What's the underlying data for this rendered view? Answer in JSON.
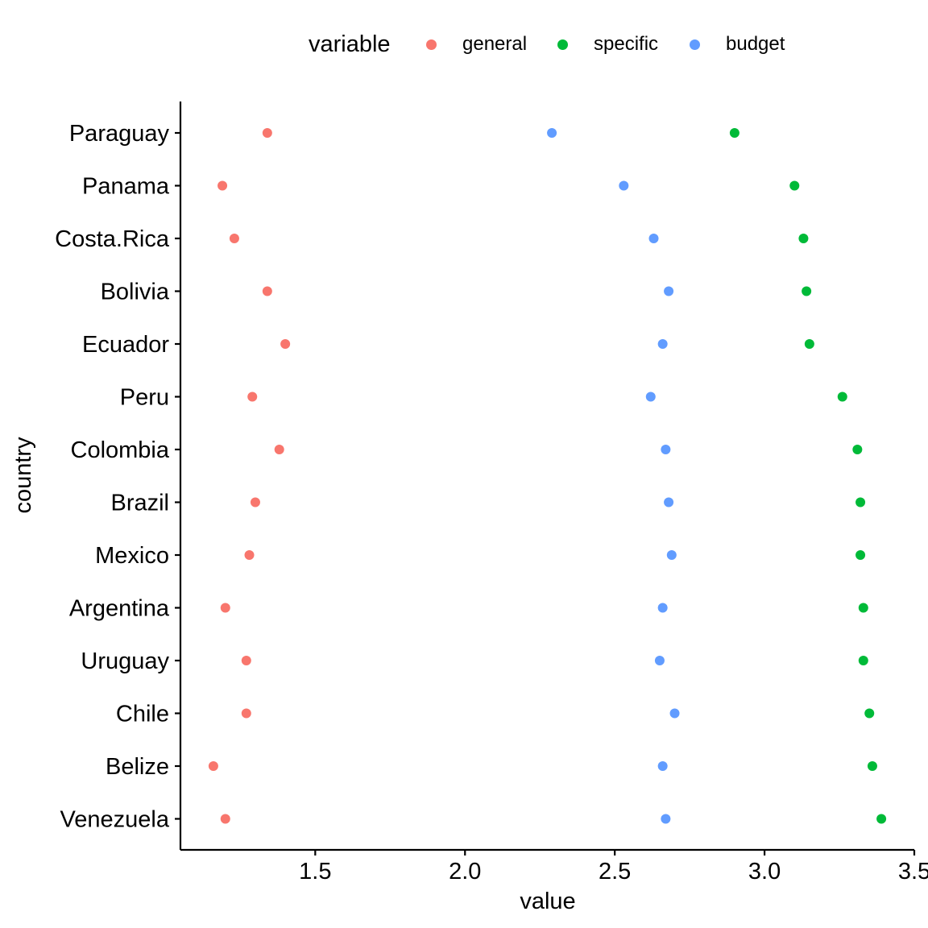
{
  "chart_data": {
    "type": "scatter",
    "xlabel": "value",
    "ylabel": "country",
    "xlim": [
      1.05,
      3.5
    ],
    "x_ticks": [
      1.5,
      2.0,
      2.5,
      3.0,
      3.5
    ],
    "x_tick_labels": [
      "1.5",
      "2.0",
      "2.5",
      "3.0",
      "3.5"
    ],
    "grid": false,
    "legend": {
      "title": "variable",
      "placement": "top",
      "entries": [
        "general",
        "specific",
        "budget"
      ]
    },
    "categories": [
      "Paraguay",
      "Panama",
      "Costa.Rica",
      "Bolivia",
      "Ecuador",
      "Peru",
      "Colombia",
      "Brazil",
      "Mexico",
      "Argentina",
      "Uruguay",
      "Chile",
      "Belize",
      "Venezuela"
    ],
    "series": [
      {
        "name": "general",
        "color": "#F8766D",
        "values": [
          1.34,
          1.19,
          1.23,
          1.34,
          1.4,
          1.29,
          1.38,
          1.3,
          1.28,
          1.2,
          1.27,
          1.27,
          1.16,
          1.2
        ]
      },
      {
        "name": "specific",
        "color": "#00BA38",
        "values": [
          2.9,
          3.1,
          3.13,
          3.14,
          3.15,
          3.26,
          3.31,
          3.32,
          3.32,
          3.33,
          3.33,
          3.35,
          3.36,
          3.39
        ]
      },
      {
        "name": "budget",
        "color": "#619CFF",
        "values": [
          2.29,
          2.53,
          2.63,
          2.68,
          2.66,
          2.62,
          2.67,
          2.68,
          2.69,
          2.66,
          2.65,
          2.7,
          2.66,
          2.67
        ]
      }
    ]
  }
}
